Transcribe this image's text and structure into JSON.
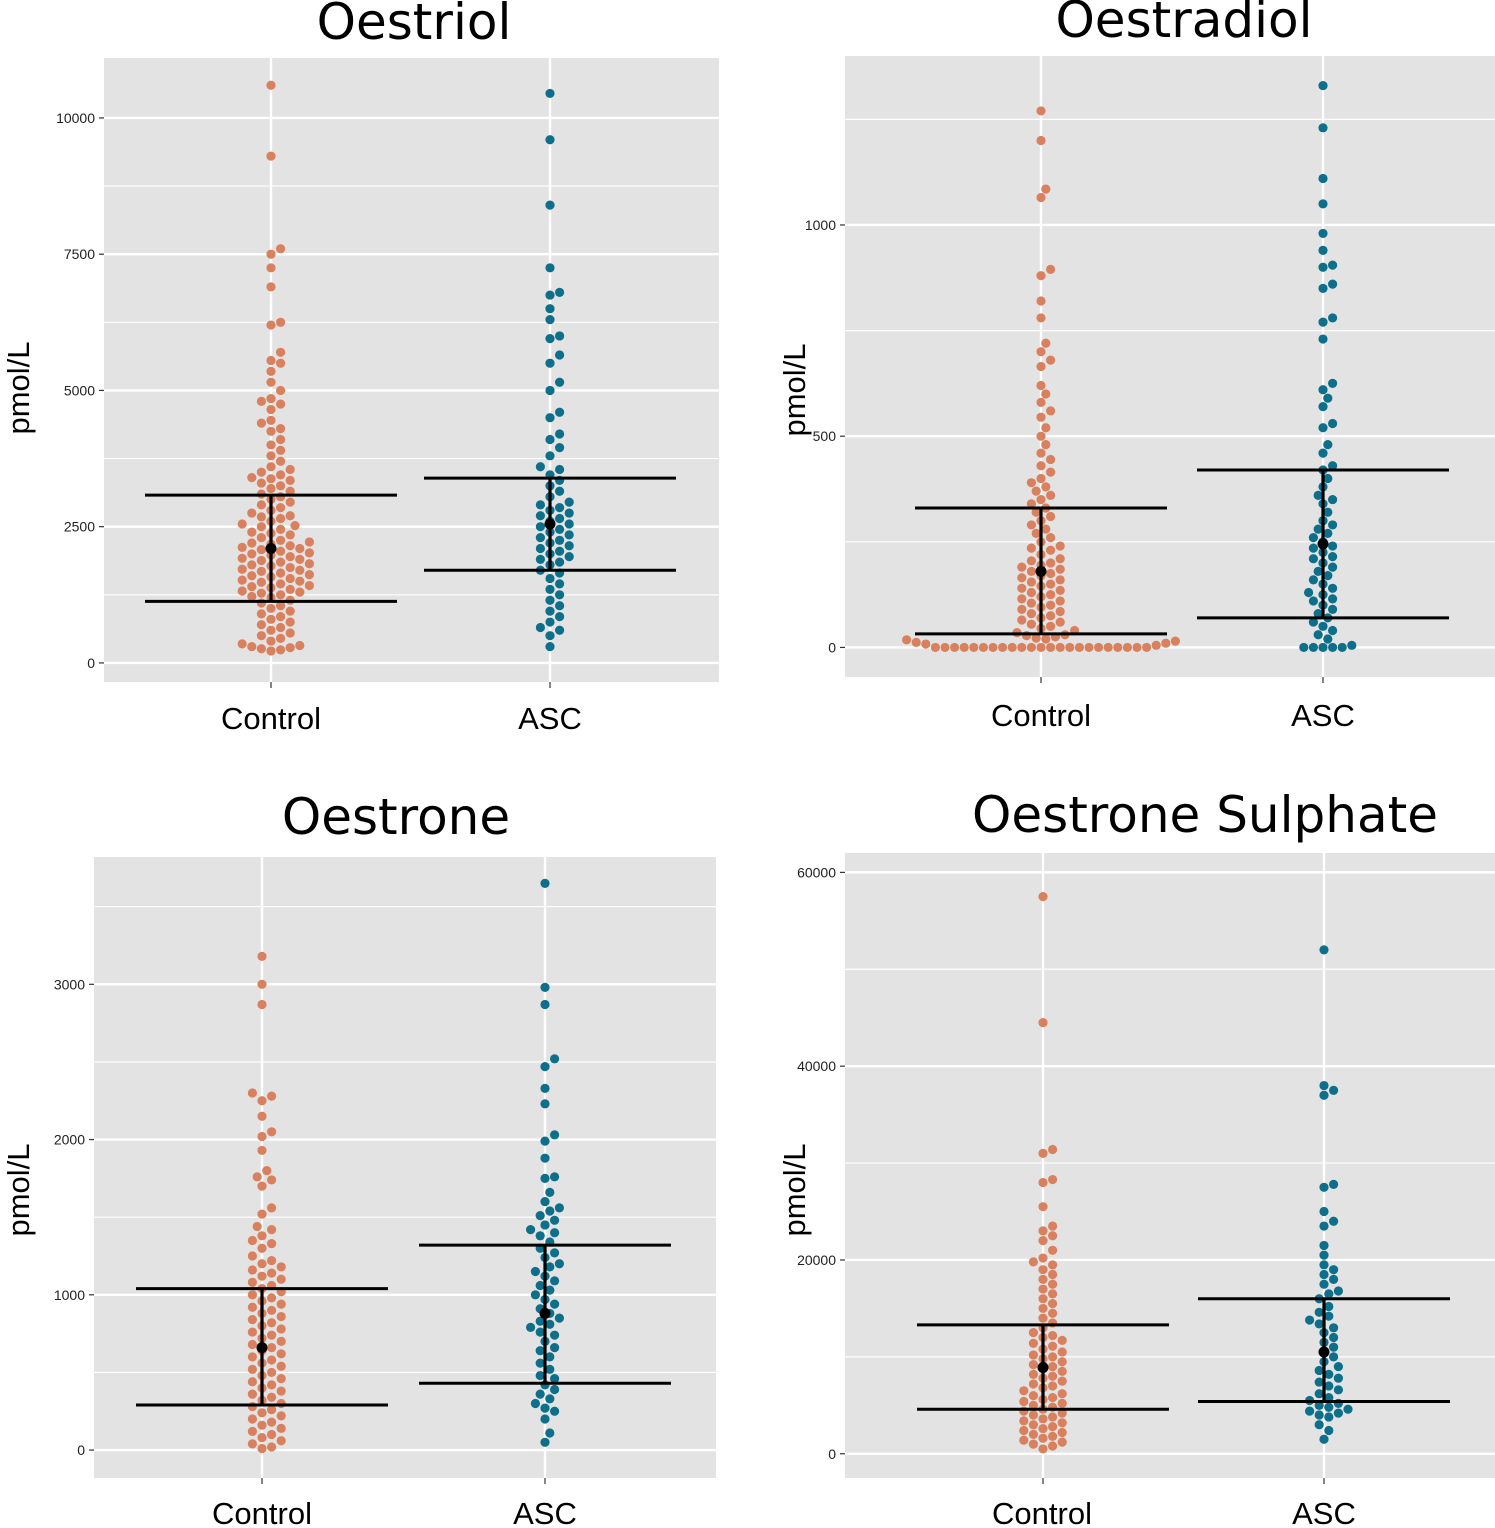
{
  "colors": {
    "control": "#D9805F",
    "asc": "#0E6F8A",
    "panel_bg": "#E3E3E3",
    "grid": "#FFFFFF",
    "summary": "#000000"
  },
  "chart_data": [
    {
      "type": "scatter",
      "title": "Oestriol",
      "ylabel": "pmol/L",
      "categories": [
        "Control",
        "ASC"
      ],
      "ylim": [
        -350,
        11100
      ],
      "yticks": [
        0,
        2500,
        5000,
        7500,
        10000
      ],
      "ytick_labels": [
        "0",
        "2500",
        "5000",
        "7500",
        "10000"
      ],
      "summary": [
        {
          "group": "Control",
          "mean": 2100,
          "lower": 1130,
          "upper": 3080
        },
        {
          "group": "ASC",
          "mean": 2550,
          "lower": 1700,
          "upper": 3390
        }
      ],
      "series": [
        {
          "name": "Control",
          "values": [
            10600,
            9300,
            7600,
            7500,
            7250,
            6900,
            6200,
            6250,
            5700,
            5550,
            5500,
            5350,
            5150,
            5000,
            4850,
            4800,
            4750,
            4650,
            4450,
            4400,
            4300,
            4250,
            4100,
            4000,
            3900,
            3800,
            3700,
            3600,
            3550,
            3500,
            3450,
            3400,
            3380,
            3350,
            3300,
            3250,
            3200,
            3150,
            3100,
            3050,
            3000,
            2950,
            2900,
            2850,
            2800,
            2750,
            2700,
            2680,
            2650,
            2600,
            2550,
            2520,
            2500,
            2450,
            2400,
            2380,
            2350,
            2300,
            2250,
            2220,
            2200,
            2180,
            2150,
            2120,
            2100,
            2080,
            2050,
            2020,
            2000,
            1980,
            1950,
            1920,
            1900,
            1880,
            1850,
            1820,
            1800,
            1780,
            1750,
            1720,
            1700,
            1680,
            1650,
            1620,
            1600,
            1580,
            1550,
            1520,
            1500,
            1480,
            1450,
            1420,
            1400,
            1380,
            1350,
            1320,
            1300,
            1280,
            1250,
            1220,
            1200,
            1150,
            1100,
            1050,
            1000,
            950,
            900,
            850,
            800,
            750,
            700,
            650,
            600,
            550,
            500,
            450,
            400,
            350,
            320,
            300,
            280,
            260,
            240,
            220
          ]
        },
        {
          "name": "ASC",
          "values": [
            10450,
            9600,
            8400,
            7250,
            6800,
            6750,
            6500,
            6300,
            6000,
            5950,
            5650,
            5500,
            5150,
            5000,
            4600,
            4500,
            4200,
            4100,
            3950,
            3800,
            3600,
            3550,
            3450,
            3350,
            3250,
            3150,
            3050,
            2950,
            2900,
            2850,
            2800,
            2750,
            2700,
            2650,
            2600,
            2550,
            2500,
            2450,
            2400,
            2350,
            2300,
            2250,
            2200,
            2150,
            2100,
            2050,
            2000,
            1950,
            1900,
            1850,
            1800,
            1700,
            1650,
            1550,
            1450,
            1350,
            1250,
            1150,
            1050,
            950,
            850,
            750,
            650,
            600,
            500,
            300
          ]
        }
      ]
    },
    {
      "type": "scatter",
      "title": "Oestradiol",
      "ylabel": "pmol/L",
      "categories": [
        "Control",
        "ASC"
      ],
      "ylim": [
        -70,
        1400
      ],
      "yticks": [
        0,
        500,
        1000
      ],
      "ytick_labels": [
        "0",
        "500",
        "1000"
      ],
      "summary": [
        {
          "group": "Control",
          "mean": 180,
          "lower": 32,
          "upper": 330
        },
        {
          "group": "ASC",
          "mean": 245,
          "lower": 70,
          "upper": 420
        }
      ],
      "series": [
        {
          "name": "Control",
          "values": [
            1270,
            1200,
            1085,
            1065,
            895,
            880,
            820,
            780,
            720,
            700,
            680,
            665,
            620,
            600,
            580,
            560,
            545,
            520,
            500,
            480,
            460,
            445,
            430,
            415,
            400,
            390,
            380,
            370,
            360,
            350,
            340,
            330,
            320,
            310,
            300,
            290,
            280,
            270,
            260,
            250,
            240,
            235,
            230,
            220,
            210,
            205,
            200,
            195,
            190,
            185,
            180,
            175,
            170,
            165,
            160,
            155,
            150,
            145,
            140,
            135,
            130,
            125,
            120,
            115,
            110,
            105,
            100,
            95,
            90,
            85,
            80,
            75,
            70,
            65,
            60,
            55,
            50,
            45,
            40,
            35,
            30,
            28,
            25,
            22,
            20,
            18,
            15,
            12,
            10,
            8,
            5,
            0,
            0,
            0,
            0,
            0,
            0,
            0,
            0,
            0,
            0,
            0,
            0,
            0,
            0,
            0,
            0,
            0,
            0,
            0,
            0,
            0,
            0,
            0
          ]
        },
        {
          "name": "ASC",
          "values": [
            1330,
            1230,
            1110,
            1050,
            980,
            940,
            905,
            900,
            860,
            850,
            780,
            770,
            730,
            625,
            610,
            590,
            570,
            530,
            520,
            480,
            460,
            430,
            420,
            400,
            380,
            360,
            350,
            340,
            320,
            300,
            290,
            280,
            270,
            260,
            250,
            240,
            235,
            225,
            215,
            210,
            200,
            190,
            180,
            170,
            160,
            150,
            140,
            130,
            125,
            115,
            110,
            100,
            90,
            80,
            70,
            60,
            50,
            40,
            30,
            20,
            5,
            0,
            0,
            0,
            0,
            0
          ]
        }
      ]
    },
    {
      "type": "scatter",
      "title": "Oestrone",
      "ylabel": "pmol/L",
      "categories": [
        "Control",
        "ASC"
      ],
      "ylim": [
        -180,
        3820
      ],
      "yticks": [
        0,
        1000,
        2000,
        3000
      ],
      "ytick_labels": [
        "0",
        "1000",
        "2000",
        "3000"
      ],
      "summary": [
        {
          "group": "Control",
          "mean": 660,
          "lower": 290,
          "upper": 1040
        },
        {
          "group": "ASC",
          "mean": 880,
          "lower": 430,
          "upper": 1320
        }
      ],
      "series": [
        {
          "name": "Control",
          "values": [
            3180,
            3000,
            2870,
            2300,
            2280,
            2250,
            2150,
            2050,
            2020,
            1930,
            1800,
            1760,
            1740,
            1700,
            1560,
            1520,
            1440,
            1420,
            1380,
            1350,
            1330,
            1300,
            1250,
            1220,
            1200,
            1180,
            1160,
            1140,
            1120,
            1100,
            1080,
            1060,
            1040,
            1020,
            1000,
            980,
            960,
            940,
            920,
            900,
            880,
            860,
            840,
            820,
            800,
            780,
            760,
            740,
            720,
            700,
            680,
            660,
            640,
            620,
            600,
            580,
            560,
            540,
            520,
            500,
            480,
            460,
            440,
            420,
            400,
            380,
            360,
            340,
            320,
            300,
            280,
            260,
            240,
            220,
            200,
            180,
            160,
            140,
            120,
            100,
            80,
            60,
            40,
            20,
            10
          ]
        },
        {
          "name": "ASC",
          "values": [
            3650,
            2980,
            2870,
            2520,
            2470,
            2330,
            2230,
            2030,
            1990,
            1880,
            1760,
            1750,
            1660,
            1600,
            1560,
            1540,
            1510,
            1480,
            1450,
            1420,
            1400,
            1380,
            1340,
            1300,
            1270,
            1240,
            1200,
            1180,
            1150,
            1120,
            1090,
            1060,
            1030,
            1000,
            970,
            940,
            910,
            880,
            850,
            830,
            810,
            790,
            760,
            740,
            700,
            660,
            640,
            600,
            560,
            520,
            480,
            460,
            420,
            390,
            360,
            330,
            300,
            270,
            250,
            200,
            110,
            50
          ]
        }
      ]
    },
    {
      "type": "scatter",
      "title": "Oestrone Sulphate",
      "ylabel": "pmol/L",
      "categories": [
        "Control",
        "ASC"
      ],
      "ylim": [
        -2500,
        62000
      ],
      "yticks": [
        0,
        20000,
        40000,
        60000
      ],
      "ytick_labels": [
        "0",
        "20000",
        "40000",
        "60000"
      ],
      "summary": [
        {
          "group": "Control",
          "mean": 8900,
          "lower": 4600,
          "upper": 13300
        },
        {
          "group": "ASC",
          "mean": 10500,
          "lower": 5400,
          "upper": 16000
        }
      ],
      "series": [
        {
          "name": "Control",
          "values": [
            57500,
            44500,
            31400,
            31000,
            28300,
            28000,
            25500,
            23500,
            23000,
            22500,
            22000,
            21000,
            20200,
            19800,
            19500,
            19000,
            18500,
            18000,
            17500,
            17000,
            16500,
            16000,
            15500,
            15000,
            14500,
            14000,
            13500,
            13000,
            12500,
            12200,
            12000,
            11700,
            11400,
            11100,
            10800,
            10500,
            10200,
            10000,
            9800,
            9500,
            9200,
            9000,
            8800,
            8500,
            8200,
            8000,
            7800,
            7500,
            7200,
            7000,
            6800,
            6500,
            6200,
            6000,
            5800,
            5600,
            5400,
            5200,
            5000,
            4800,
            4600,
            4400,
            4200,
            4000,
            3800,
            3600,
            3400,
            3200,
            3000,
            2800,
            2600,
            2400,
            2200,
            2000,
            1800,
            1600,
            1400,
            1200,
            1000,
            800,
            500
          ]
        },
        {
          "name": "ASC",
          "values": [
            52000,
            38000,
            37500,
            37000,
            27800,
            27500,
            25000,
            24000,
            23500,
            21500,
            20500,
            19500,
            19000,
            18500,
            18000,
            17500,
            16800,
            16500,
            16000,
            15200,
            14600,
            14200,
            13800,
            13400,
            13000,
            12500,
            12000,
            11500,
            11000,
            10500,
            10000,
            9500,
            9000,
            8600,
            8200,
            7800,
            7400,
            7000,
            6600,
            6200,
            5800,
            5500,
            5200,
            5000,
            4800,
            4600,
            4400,
            4200,
            4000,
            3800,
            3000,
            2400,
            1500
          ]
        }
      ]
    }
  ]
}
